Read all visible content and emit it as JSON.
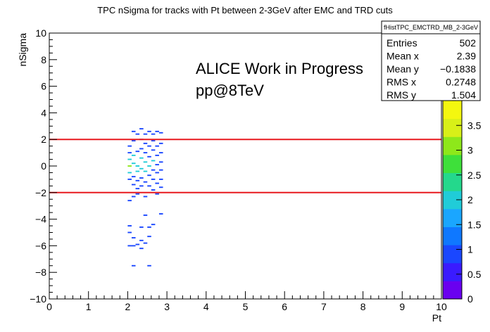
{
  "chart_data": {
    "type": "heatmap",
    "title": "TPC nSigma for tracks with Pt between 2-3GeV after EMC and TRD cuts",
    "xlabel": "Pt",
    "ylabel": "nSigma",
    "xlim": [
      0,
      10
    ],
    "ylim": [
      -10,
      10
    ],
    "x_ticks": [
      "0",
      "1",
      "2",
      "3",
      "4",
      "5",
      "6",
      "7",
      "8",
      "9",
      "10"
    ],
    "y_ticks": [
      "−10",
      "−8",
      "−6",
      "−4",
      "−2",
      "0",
      "2",
      "4",
      "6",
      "8",
      "10"
    ],
    "cut_lines": [
      {
        "y": 2,
        "color": "#e8191e"
      },
      {
        "y": -2,
        "color": "#e8191e"
      }
    ],
    "colorbar": {
      "min": 0,
      "max": 4,
      "ticks": [
        "0",
        "0.5",
        "1",
        "1.5",
        "2",
        "2.5",
        "3",
        "3.5"
      ],
      "tick_values": [
        0,
        0.5,
        1,
        1.5,
        2,
        2.5,
        3,
        3.5
      ]
    },
    "annotations": [
      "ALICE Work in Progress",
      "pp@8TeV"
    ],
    "stats": {
      "name": "fHistTPC_EMCTRD_MB_2-3GeV",
      "rows": [
        {
          "label": "Entries",
          "value": "502"
        },
        {
          "label": "Mean x",
          "value": "2.39"
        },
        {
          "label": "Mean y",
          "value": "−0.1838"
        },
        {
          "label": "RMS x",
          "value": "0.2748"
        },
        {
          "label": "RMS y",
          "value": "1.504"
        }
      ]
    },
    "cells": [
      {
        "x": 2.05,
        "y": 0.0,
        "z": 3
      },
      {
        "x": 2.05,
        "y": 0.5,
        "z": 2
      },
      {
        "x": 2.05,
        "y": -0.5,
        "z": 2
      },
      {
        "x": 2.05,
        "y": 1.0,
        "z": 1
      },
      {
        "x": 2.05,
        "y": -1.0,
        "z": 1
      },
      {
        "x": 2.05,
        "y": 1.5,
        "z": 1
      },
      {
        "x": 2.05,
        "y": -2.6,
        "z": 1
      },
      {
        "x": 2.05,
        "y": -4.5,
        "z": 1
      },
      {
        "x": 2.05,
        "y": -6.0,
        "z": 1
      },
      {
        "x": 2.05,
        "y": -5.0,
        "z": 1
      },
      {
        "x": 2.15,
        "y": 0.2,
        "z": 2
      },
      {
        "x": 2.15,
        "y": 0.8,
        "z": 2
      },
      {
        "x": 2.15,
        "y": -0.8,
        "z": 1
      },
      {
        "x": 2.15,
        "y": 1.9,
        "z": 1
      },
      {
        "x": 2.15,
        "y": -1.4,
        "z": 1
      },
      {
        "x": 2.15,
        "y": 2.6,
        "z": 1
      },
      {
        "x": 2.15,
        "y": -2.3,
        "z": 1
      },
      {
        "x": 2.15,
        "y": -5.4,
        "z": 1
      },
      {
        "x": 2.15,
        "y": -7.5,
        "z": 1
      },
      {
        "x": 2.15,
        "y": -6.0,
        "z": 1
      },
      {
        "x": 2.25,
        "y": 0.0,
        "z": 2
      },
      {
        "x": 2.25,
        "y": 1.1,
        "z": 1
      },
      {
        "x": 2.25,
        "y": -0.4,
        "z": 2
      },
      {
        "x": 2.25,
        "y": -1.1,
        "z": 1
      },
      {
        "x": 2.25,
        "y": 2.4,
        "z": 1
      },
      {
        "x": 2.25,
        "y": -2.1,
        "z": 1
      },
      {
        "x": 2.25,
        "y": -1.7,
        "z": 1
      },
      {
        "x": 2.25,
        "y": -5.9,
        "z": 1
      },
      {
        "x": 2.35,
        "y": 0.6,
        "z": 2
      },
      {
        "x": 2.35,
        "y": -0.2,
        "z": 2
      },
      {
        "x": 2.35,
        "y": 1.3,
        "z": 1
      },
      {
        "x": 2.35,
        "y": -0.9,
        "z": 1
      },
      {
        "x": 2.35,
        "y": 2.0,
        "z": 1
      },
      {
        "x": 2.35,
        "y": -1.5,
        "z": 1
      },
      {
        "x": 2.35,
        "y": 2.8,
        "z": 1
      },
      {
        "x": 2.35,
        "y": -6.2,
        "z": 1
      },
      {
        "x": 2.35,
        "y": -5.6,
        "z": 1
      },
      {
        "x": 2.35,
        "y": -4.6,
        "z": 1
      },
      {
        "x": 2.45,
        "y": 0.3,
        "z": 2
      },
      {
        "x": 2.45,
        "y": -0.4,
        "z": 2
      },
      {
        "x": 2.45,
        "y": 1.0,
        "z": 1
      },
      {
        "x": 2.45,
        "y": -1.2,
        "z": 1
      },
      {
        "x": 2.45,
        "y": 1.7,
        "z": 1
      },
      {
        "x": 2.45,
        "y": 2.4,
        "z": 1
      },
      {
        "x": 2.45,
        "y": -2.3,
        "z": 1
      },
      {
        "x": 2.45,
        "y": -3.7,
        "z": 1
      },
      {
        "x": 2.45,
        "y": -5.8,
        "z": 1
      },
      {
        "x": 2.55,
        "y": 0.0,
        "z": 2
      },
      {
        "x": 2.55,
        "y": 0.7,
        "z": 1
      },
      {
        "x": 2.55,
        "y": -0.7,
        "z": 1
      },
      {
        "x": 2.55,
        "y": 1.5,
        "z": 1
      },
      {
        "x": 2.55,
        "y": -1.5,
        "z": 1
      },
      {
        "x": 2.55,
        "y": 2.6,
        "z": 1
      },
      {
        "x": 2.55,
        "y": -4.6,
        "z": 1
      },
      {
        "x": 2.55,
        "y": -5.3,
        "z": 1
      },
      {
        "x": 2.55,
        "y": -7.5,
        "z": 1
      },
      {
        "x": 2.65,
        "y": 0.4,
        "z": 2
      },
      {
        "x": 2.65,
        "y": -0.3,
        "z": 1
      },
      {
        "x": 2.65,
        "y": 1.2,
        "z": 1
      },
      {
        "x": 2.65,
        "y": -1.0,
        "z": 1
      },
      {
        "x": 2.65,
        "y": 1.9,
        "z": 1
      },
      {
        "x": 2.65,
        "y": -1.8,
        "z": 1
      },
      {
        "x": 2.65,
        "y": 2.4,
        "z": 1
      },
      {
        "x": 2.65,
        "y": -4.4,
        "z": 1
      },
      {
        "x": 2.75,
        "y": 0.1,
        "z": 1
      },
      {
        "x": 2.75,
        "y": -0.5,
        "z": 1
      },
      {
        "x": 2.75,
        "y": 0.8,
        "z": 1
      },
      {
        "x": 2.75,
        "y": -1.3,
        "z": 1
      },
      {
        "x": 2.75,
        "y": 1.5,
        "z": 1
      },
      {
        "x": 2.75,
        "y": 2.6,
        "z": 1
      },
      {
        "x": 2.75,
        "y": -2.1,
        "z": 1
      },
      {
        "x": 2.85,
        "y": 0.3,
        "z": 1
      },
      {
        "x": 2.85,
        "y": -0.3,
        "z": 1
      },
      {
        "x": 2.85,
        "y": 1.0,
        "z": 1
      },
      {
        "x": 2.85,
        "y": -1.0,
        "z": 1
      },
      {
        "x": 2.85,
        "y": 1.7,
        "z": 1
      },
      {
        "x": 2.85,
        "y": -1.6,
        "z": 1
      },
      {
        "x": 2.85,
        "y": 2.5,
        "z": 1
      },
      {
        "x": 2.85,
        "y": -3.6,
        "z": 1
      }
    ]
  }
}
